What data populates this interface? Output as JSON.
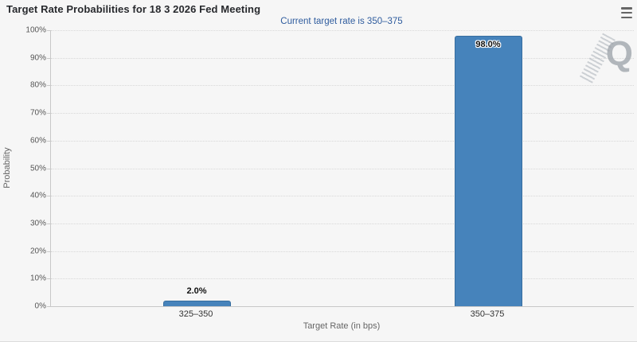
{
  "chart_data": {
    "type": "bar",
    "title": "Target Rate Probabilities for 18 3 2026 Fed Meeting",
    "subtitle": "Current target rate is 350–375",
    "categories": [
      "325–350",
      "350–375"
    ],
    "values": [
      2.0,
      98.0
    ],
    "value_labels": [
      "2.0%",
      "98.0%"
    ],
    "xlabel": "Target Rate (in bps)",
    "ylabel": "Probability",
    "ylim": [
      0,
      100
    ],
    "ytick_labels": [
      "0%",
      "10%",
      "20%",
      "30%",
      "40%",
      "50%",
      "60%",
      "70%",
      "80%",
      "90%",
      "100%"
    ],
    "grid": "horizontal-dotted",
    "legend": "none",
    "bar_color": "#4683bb"
  },
  "toolbar": {
    "context_menu_icon": "hamburger-menu-icon"
  },
  "watermark": {
    "letter": "Q"
  },
  "colors": {
    "background": "#f6f6f6",
    "title": "#27292d",
    "subtitle": "#2f5c9e",
    "bar": "#4683bb",
    "gridline": "#d8d8d8",
    "axis_line": "#c8c8c8",
    "tick_label": "#555555",
    "axis_title": "#666666"
  }
}
